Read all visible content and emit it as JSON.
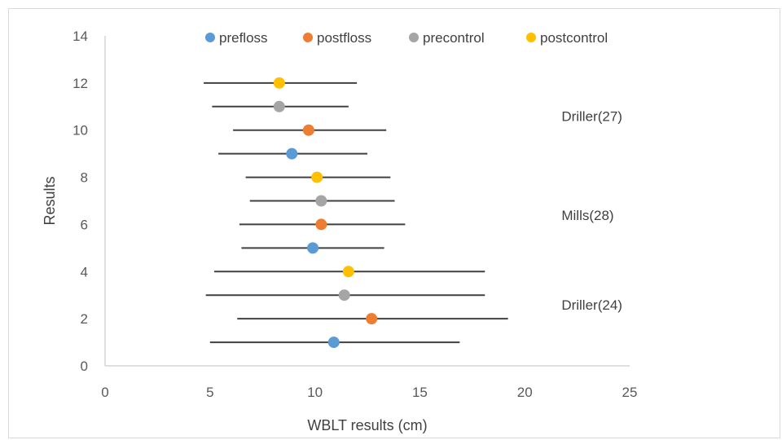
{
  "chart_data": {
    "type": "scatter",
    "title": "",
    "xlabel": "WBLT results (cm)",
    "ylabel": "Results",
    "xlim": [
      0,
      25
    ],
    "ylim": [
      0,
      14
    ],
    "xticks": [
      "0",
      "5",
      "10",
      "15",
      "20",
      "25"
    ],
    "yticks": [
      "0",
      "2",
      "4",
      "6",
      "8",
      "10",
      "12",
      "14"
    ],
    "grid": false,
    "legend_position": "top",
    "series": [
      {
        "name": "prefloss",
        "color": "#5b9bd5",
        "points": [
          {
            "x": 10.9,
            "y": 1,
            "xmin": 5.0,
            "xmax": 16.9
          },
          {
            "x": 9.9,
            "y": 5,
            "xmin": 6.5,
            "xmax": 13.3
          },
          {
            "x": 8.9,
            "y": 9,
            "xmin": 5.4,
            "xmax": 12.5
          }
        ]
      },
      {
        "name": "postfloss",
        "color": "#ed7d31",
        "points": [
          {
            "x": 12.7,
            "y": 2,
            "xmin": 6.3,
            "xmax": 19.2
          },
          {
            "x": 10.3,
            "y": 6,
            "xmin": 6.4,
            "xmax": 14.3
          },
          {
            "x": 9.7,
            "y": 10,
            "xmin": 6.1,
            "xmax": 13.4
          }
        ]
      },
      {
        "name": "precontrol",
        "color": "#a5a5a5",
        "points": [
          {
            "x": 11.4,
            "y": 3,
            "xmin": 4.8,
            "xmax": 18.1
          },
          {
            "x": 10.3,
            "y": 7,
            "xmin": 6.9,
            "xmax": 13.8
          },
          {
            "x": 8.3,
            "y": 11,
            "xmin": 5.1,
            "xmax": 11.6
          }
        ]
      },
      {
        "name": "postcontrol",
        "color": "#ffc000",
        "points": [
          {
            "x": 11.6,
            "y": 4,
            "xmin": 5.2,
            "xmax": 18.1
          },
          {
            "x": 10.1,
            "y": 8,
            "xmin": 6.7,
            "xmax": 13.6
          },
          {
            "x": 8.3,
            "y": 12,
            "xmin": 4.7,
            "xmax": 12.0
          }
        ]
      }
    ],
    "annotations": [
      {
        "text": "Driller(27)",
        "x": 23.2,
        "y": 10.6
      },
      {
        "text": "Mills(28)",
        "x": 23.0,
        "y": 6.4
      },
      {
        "text": "Driller(24)",
        "x": 23.2,
        "y": 2.6
      }
    ]
  }
}
